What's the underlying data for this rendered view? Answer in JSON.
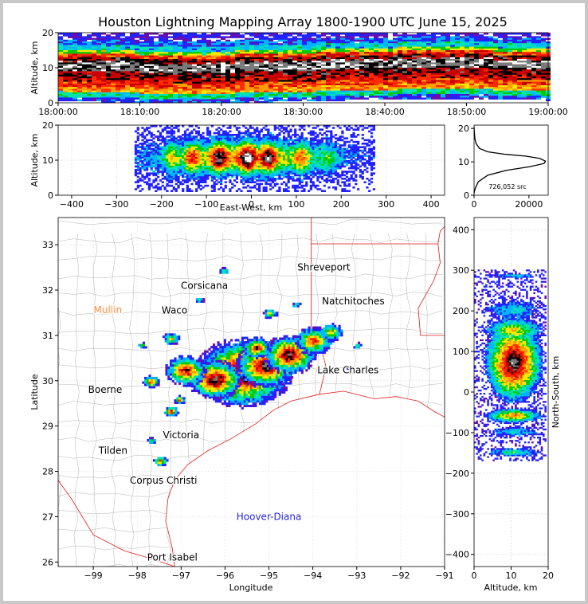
{
  "title": "Houston Lightning Mapping Array 1800-1900 UTC June 15, 2025",
  "colors": {
    "density_scale": [
      "#6a0dad",
      "#2222ff",
      "#00b4ff",
      "#00e5b0",
      "#00cc00",
      "#f5e800",
      "#ff9d00",
      "#ff2a00",
      "#c80000",
      "#000000",
      "#7a7a7a",
      "#ffffff"
    ],
    "state_border": "#e11b1b",
    "county_border": "#b4b4b4",
    "city_label_orange": "#ff8c3a",
    "site_label_blue": "#2424e0"
  },
  "chart_data": [
    {
      "id": "time_height",
      "type": "heatmap",
      "xlabel": "",
      "ylabel": "Altitude, km",
      "x_ticks": [
        "18:00:00",
        "18:10:00",
        "18:20:00",
        "18:30:00",
        "18:40:00",
        "18:50:00",
        "19:00:00"
      ],
      "y_ticks": [
        "0",
        "10",
        "20"
      ],
      "ylim": [
        0,
        20
      ],
      "description_bands_km": [
        [
          1,
          4
        ],
        [
          4,
          7
        ],
        [
          7,
          9.5
        ],
        [
          9.5,
          14
        ],
        [
          14,
          16
        ],
        [
          16,
          20
        ]
      ]
    },
    {
      "id": "east_west_height",
      "type": "heatmap",
      "xlabel": "East-West, km",
      "ylabel": "Altitude, km",
      "x_ticks": [
        "−400",
        "−300",
        "−200",
        "−100",
        "0",
        "100",
        "200",
        "300",
        "400"
      ],
      "y_ticks": [
        "0",
        "10",
        "20"
      ],
      "xlim": [
        -430,
        430
      ],
      "ylim": [
        0,
        20
      ]
    },
    {
      "id": "altitude_histogram",
      "type": "line",
      "x_ticks": [
        "0",
        "20000"
      ],
      "y_ticks": [
        "0",
        "10",
        "20"
      ],
      "xlim": [
        0,
        27000
      ],
      "ylim": [
        0,
        21
      ],
      "annotation": "726,052 src",
      "series": [
        {
          "x": [
            0,
            100,
            400,
            1500,
            5000,
            12000,
            20000,
            25500,
            26000,
            24000,
            19000,
            11000,
            5000,
            2000,
            700,
            300,
            100,
            0
          ],
          "y": [
            0.5,
            1,
            2,
            4,
            6,
            7.5,
            8.5,
            9.5,
            10.2,
            11,
            11.7,
            12.3,
            13,
            14,
            15.5,
            17,
            19,
            20.5
          ]
        }
      ]
    },
    {
      "id": "plan_view",
      "type": "scatter",
      "xlabel": "Longitude",
      "ylabel": "Latitude",
      "x_ticks": [
        "−99",
        "−98",
        "−97",
        "−96",
        "−95",
        "−94",
        "−93",
        "−92",
        "−91"
      ],
      "y_ticks": [
        "26",
        "27",
        "28",
        "29",
        "30",
        "31",
        "32",
        "33"
      ],
      "xlim": [
        -99.8,
        -91.0
      ],
      "ylim": [
        25.9,
        33.6
      ],
      "cities": [
        {
          "name": "Shreveport",
          "lon": -93.75,
          "lat": 32.5
        },
        {
          "name": "Corsicana",
          "lon": -96.47,
          "lat": 32.1
        },
        {
          "name": "Natchitoches",
          "lon": -93.08,
          "lat": 31.75
        },
        {
          "name": "Mullin",
          "lon": -98.67,
          "lat": 31.56
        },
        {
          "name": "Waco",
          "lon": -97.15,
          "lat": 31.55
        },
        {
          "name": "Lake Charles",
          "lon": -93.2,
          "lat": 30.23
        },
        {
          "name": "Boerne",
          "lon": -98.73,
          "lat": 29.8
        },
        {
          "name": "Victoria",
          "lon": -97.0,
          "lat": 28.8
        },
        {
          "name": "Tilden",
          "lon": -98.55,
          "lat": 28.46
        },
        {
          "name": "Corpus Christi",
          "lon": -97.4,
          "lat": 27.8
        },
        {
          "name": "Hoover-Diana",
          "lon": -95.0,
          "lat": 27.0
        },
        {
          "name": "Port Isabel",
          "lon": -97.2,
          "lat": 26.1
        }
      ]
    },
    {
      "id": "north_south_height",
      "type": "heatmap",
      "xlabel": "Altitude, km",
      "ylabel": "North-South, km",
      "x_ticks": [
        "0",
        "10",
        "20"
      ],
      "y_ticks": [
        "−400",
        "−300",
        "−200",
        "−100",
        "0",
        "100",
        "200",
        "300",
        "400"
      ],
      "xlim": [
        0,
        20
      ],
      "ylim": [
        -430,
        430
      ]
    }
  ]
}
